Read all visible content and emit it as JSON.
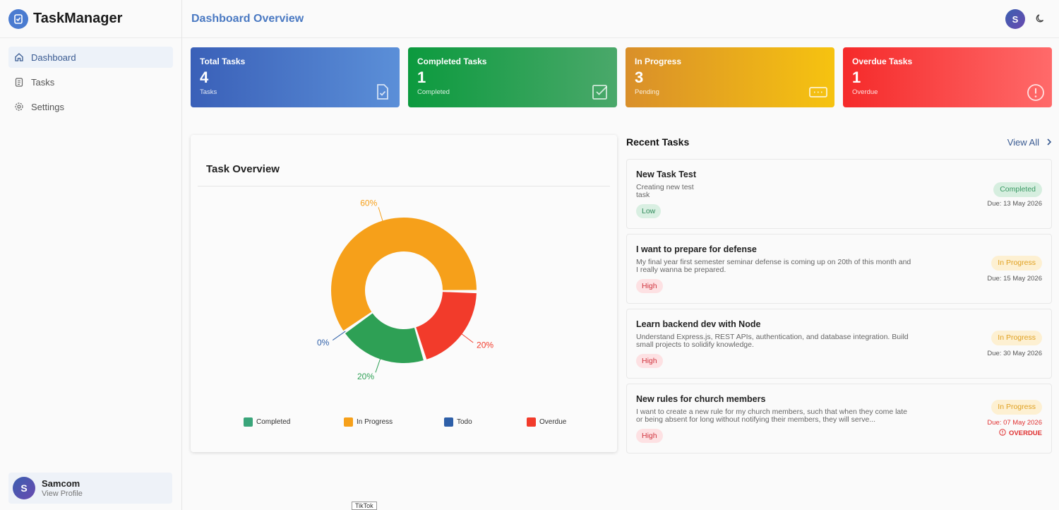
{
  "app": {
    "name": "TaskManager"
  },
  "sidebar": {
    "items": [
      {
        "label": "Dashboard",
        "icon": "home-icon",
        "active": true
      },
      {
        "label": "Tasks",
        "icon": "clipboard-icon",
        "active": false
      },
      {
        "label": "Settings",
        "icon": "gear-icon",
        "active": false
      }
    ],
    "profile": {
      "initial": "S",
      "name": "Samcom",
      "link": "View Profile"
    }
  },
  "header": {
    "title": "Dashboard Overview",
    "avatar_initial": "S"
  },
  "stats": [
    {
      "title": "Total Tasks",
      "value": "4",
      "sub": "Tasks",
      "icon": "file-check-icon"
    },
    {
      "title": "Completed Tasks",
      "value": "1",
      "sub": "Completed",
      "icon": "checkbox-icon"
    },
    {
      "title": "In Progress",
      "value": "3",
      "sub": "Pending",
      "icon": "ellipsis-box-icon"
    },
    {
      "title": "Overdue Tasks",
      "value": "1",
      "sub": "Overdue",
      "icon": "alert-circle-icon"
    }
  ],
  "overview": {
    "title": "Task Overview",
    "legend": [
      {
        "label": "Completed",
        "color": "#3aa57a"
      },
      {
        "label": "In Progress",
        "color": "#f6a01a"
      },
      {
        "label": "Todo",
        "color": "#2e5fa8"
      },
      {
        "label": "Overdue",
        "color": "#f23b2b"
      }
    ]
  },
  "chart_data": {
    "type": "pie",
    "categories": [
      "Completed",
      "In Progress",
      "Todo",
      "Overdue"
    ],
    "values": [
      20,
      60,
      0,
      20
    ],
    "labels": [
      "20%",
      "60%",
      "0%",
      "20%"
    ],
    "colors": [
      "#2ea055",
      "#f6a01a",
      "#2e5fa8",
      "#f23b2b"
    ],
    "donut": true,
    "legend": "bottom"
  },
  "recent": {
    "title": "Recent Tasks",
    "view_all": "View All",
    "tasks": [
      {
        "title": "New Task Test",
        "desc": "Creating new test task",
        "priority": "Low",
        "status": "Completed",
        "due": "Due: 13 May 2026",
        "overdue": false
      },
      {
        "title": "I want to prepare for defense",
        "desc": "My final year first semester seminar defense is coming up on 20th of this month and I really wanna be prepared.",
        "priority": "High",
        "status": "In Progress",
        "due": "Due: 15 May 2026",
        "overdue": false
      },
      {
        "title": "Learn backend dev with Node",
        "desc": "Understand Express.js, REST APIs, authentication, and database integration. Build small projects to solidify knowledge.",
        "priority": "High",
        "status": "In Progress",
        "due": "Due: 30 May 2026",
        "overdue": false
      },
      {
        "title": "New rules for church members",
        "desc": "I want to create a new rule for my church members, such that when they come late or being absent for long without notifying their members, they will serve...",
        "priority": "High",
        "status": "In Progress",
        "due": "Due: 07 May 2026",
        "overdue": true,
        "overdue_label": "OVERDUE"
      }
    ]
  },
  "footer": {
    "tiktok_label": "TikTok"
  }
}
